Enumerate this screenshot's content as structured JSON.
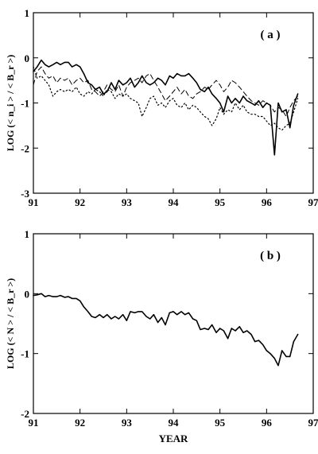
{
  "chart_data": [
    {
      "type": "line",
      "panel_label": "( a )",
      "ylabel": "LOG (< n_i > / < B_r >)",
      "xlabel": "",
      "xlim": [
        91,
        97
      ],
      "ylim": [
        -3,
        1
      ],
      "xticks": [
        91,
        92,
        93,
        94,
        95,
        96,
        97
      ],
      "yticks": [
        1,
        0,
        -1,
        -2,
        -3
      ],
      "x_tick_labels": [
        "91",
        "92",
        "93",
        "94",
        "95",
        "96",
        "97"
      ],
      "y_tick_labels": [
        "1",
        "0",
        "-1",
        "-2",
        "-3"
      ],
      "grid": false,
      "series": [
        {
          "style": "solid",
          "x": [
            91.0,
            91.08,
            91.17,
            91.25,
            91.33,
            91.42,
            91.5,
            91.58,
            91.67,
            91.75,
            91.83,
            91.92,
            92.0,
            92.08,
            92.17,
            92.25,
            92.33,
            92.42,
            92.5,
            92.58,
            92.67,
            92.75,
            92.83,
            92.92,
            93.0,
            93.08,
            93.17,
            93.25,
            93.33,
            93.42,
            93.5,
            93.58,
            93.67,
            93.75,
            93.83,
            93.92,
            94.0,
            94.08,
            94.17,
            94.25,
            94.33,
            94.42,
            94.5,
            94.58,
            94.67,
            94.75,
            94.83,
            94.92,
            95.0,
            95.08,
            95.17,
            95.25,
            95.33,
            95.42,
            95.5,
            95.58,
            95.67,
            95.75,
            95.83,
            95.92,
            96.0,
            96.08,
            96.17,
            96.25,
            96.33,
            96.42,
            96.5,
            96.58,
            96.67
          ],
          "y": [
            -0.3,
            -0.2,
            -0.05,
            -0.15,
            -0.2,
            -0.15,
            -0.1,
            -0.15,
            -0.1,
            -0.1,
            -0.2,
            -0.15,
            -0.2,
            -0.35,
            -0.55,
            -0.6,
            -0.7,
            -0.65,
            -0.8,
            -0.75,
            -0.55,
            -0.7,
            -0.5,
            -0.6,
            -0.55,
            -0.45,
            -0.65,
            -0.55,
            -0.4,
            -0.55,
            -0.6,
            -0.55,
            -0.45,
            -0.5,
            -0.6,
            -0.4,
            -0.45,
            -0.35,
            -0.4,
            -0.4,
            -0.35,
            -0.45,
            -0.55,
            -0.7,
            -0.75,
            -0.65,
            -0.8,
            -0.9,
            -1.0,
            -1.2,
            -0.85,
            -1.0,
            -0.9,
            -1.0,
            -0.85,
            -0.95,
            -1.0,
            -1.05,
            -0.95,
            -1.1,
            -1.0,
            -1.05,
            -2.15,
            -1.0,
            -1.2,
            -1.15,
            -1.55,
            -1.05,
            -0.8
          ]
        },
        {
          "style": "dashed",
          "x": [
            91.0,
            91.08,
            91.17,
            91.25,
            91.33,
            91.42,
            91.5,
            91.58,
            91.67,
            91.75,
            91.83,
            91.92,
            92.0,
            92.08,
            92.17,
            92.25,
            92.33,
            92.42,
            92.5,
            92.58,
            92.67,
            92.75,
            92.83,
            92.92,
            93.0,
            93.08,
            93.17,
            93.25,
            93.33,
            93.42,
            93.5,
            93.58,
            93.67,
            93.75,
            93.83,
            93.92,
            94.0,
            94.08,
            94.17,
            94.25,
            94.33,
            94.42,
            94.5,
            94.58,
            94.67,
            94.75,
            94.83,
            94.92,
            95.0,
            95.08,
            95.17,
            95.25,
            95.33,
            95.42,
            95.5,
            95.58,
            95.67,
            95.75,
            95.83,
            95.92,
            96.0,
            96.08,
            96.17,
            96.25,
            96.33,
            96.42,
            96.5,
            96.58,
            96.67
          ],
          "y": [
            -0.6,
            -0.3,
            -0.2,
            -0.35,
            -0.45,
            -0.4,
            -0.55,
            -0.45,
            -0.5,
            -0.45,
            -0.6,
            -0.5,
            -0.45,
            -0.55,
            -0.5,
            -0.7,
            -0.75,
            -0.85,
            -0.75,
            -0.6,
            -0.7,
            -0.75,
            -0.6,
            -0.85,
            -0.65,
            -0.55,
            -0.5,
            -0.45,
            -0.55,
            -0.4,
            -0.35,
            -0.5,
            -0.65,
            -0.8,
            -0.95,
            -0.85,
            -0.75,
            -0.65,
            -0.8,
            -0.7,
            -0.85,
            -0.9,
            -0.8,
            -0.75,
            -0.65,
            -0.7,
            -0.6,
            -0.5,
            -0.6,
            -0.75,
            -0.65,
            -0.5,
            -0.55,
            -0.65,
            -0.75,
            -0.85,
            -0.95,
            -1.0,
            -1.05,
            -0.95,
            -1.0,
            -1.05,
            -1.2,
            -1.1,
            -1.15,
            -1.3,
            -1.1,
            -0.95,
            -0.85
          ]
        },
        {
          "style": "dotted",
          "x": [
            91.0,
            91.08,
            91.17,
            91.25,
            91.33,
            91.42,
            91.5,
            91.58,
            91.67,
            91.75,
            91.83,
            91.92,
            92.0,
            92.08,
            92.17,
            92.25,
            92.33,
            92.42,
            92.5,
            92.58,
            92.67,
            92.75,
            92.83,
            92.92,
            93.0,
            93.08,
            93.17,
            93.25,
            93.33,
            93.42,
            93.5,
            93.58,
            93.67,
            93.75,
            93.83,
            93.92,
            94.0,
            94.08,
            94.17,
            94.25,
            94.33,
            94.42,
            94.5,
            94.58,
            94.67,
            94.75,
            94.83,
            94.92,
            95.0,
            95.08,
            95.17,
            95.25,
            95.33,
            95.42,
            95.5,
            95.58,
            95.67,
            95.75,
            95.83,
            95.92,
            96.0,
            96.08,
            96.17,
            96.25,
            96.33,
            96.42,
            96.5,
            96.58,
            96.67
          ],
          "y": [
            -0.2,
            -0.45,
            -0.4,
            -0.5,
            -0.6,
            -0.85,
            -0.75,
            -0.7,
            -0.75,
            -0.7,
            -0.75,
            -0.65,
            -0.8,
            -0.85,
            -0.75,
            -0.8,
            -0.7,
            -0.75,
            -0.85,
            -0.7,
            -0.75,
            -0.9,
            -0.8,
            -0.85,
            -0.8,
            -0.9,
            -0.95,
            -1.0,
            -1.3,
            -1.1,
            -0.9,
            -0.85,
            -1.05,
            -1.0,
            -1.1,
            -0.95,
            -0.9,
            -1.05,
            -1.1,
            -1.0,
            -1.15,
            -1.05,
            -1.1,
            -1.2,
            -1.3,
            -1.35,
            -1.5,
            -1.35,
            -1.1,
            -1.25,
            -1.15,
            -1.2,
            -1.0,
            -1.15,
            -1.05,
            -1.2,
            -1.25,
            -1.25,
            -1.3,
            -1.3,
            -1.4,
            -1.5,
            -1.45,
            -1.55,
            -1.6,
            -1.5,
            -1.45,
            -1.2,
            -0.9
          ]
        }
      ]
    },
    {
      "type": "line",
      "panel_label": "( b )",
      "ylabel": "LOG (< N > / < B_r >)",
      "xlabel": "YEAR",
      "xlim": [
        91,
        97
      ],
      "ylim": [
        -2,
        1
      ],
      "xticks": [
        91,
        92,
        93,
        94,
        95,
        96,
        97
      ],
      "yticks": [
        1,
        0,
        -1,
        -2
      ],
      "x_tick_labels": [
        "91",
        "92",
        "93",
        "94",
        "95",
        "96",
        "97"
      ],
      "y_tick_labels": [
        "1",
        "0",
        "-1",
        "-2"
      ],
      "grid": false,
      "series": [
        {
          "style": "solid",
          "x": [
            91.0,
            91.08,
            91.17,
            91.25,
            91.33,
            91.42,
            91.5,
            91.58,
            91.67,
            91.75,
            91.83,
            91.92,
            92.0,
            92.08,
            92.17,
            92.25,
            92.33,
            92.42,
            92.5,
            92.58,
            92.67,
            92.75,
            92.83,
            92.92,
            93.0,
            93.08,
            93.17,
            93.25,
            93.33,
            93.42,
            93.5,
            93.58,
            93.67,
            93.75,
            93.83,
            93.92,
            94.0,
            94.08,
            94.17,
            94.25,
            94.33,
            94.42,
            94.5,
            94.58,
            94.67,
            94.75,
            94.83,
            94.92,
            95.0,
            95.08,
            95.17,
            95.25,
            95.33,
            95.42,
            95.5,
            95.58,
            95.67,
            95.75,
            95.83,
            95.92,
            96.0,
            96.08,
            96.17,
            96.25,
            96.33,
            96.42,
            96.5,
            96.58,
            96.67
          ],
          "y": [
            -0.03,
            -0.02,
            0.0,
            -0.05,
            -0.03,
            -0.05,
            -0.05,
            -0.03,
            -0.06,
            -0.05,
            -0.08,
            -0.08,
            -0.12,
            -0.22,
            -0.3,
            -0.38,
            -0.4,
            -0.35,
            -0.4,
            -0.35,
            -0.42,
            -0.38,
            -0.42,
            -0.35,
            -0.45,
            -0.3,
            -0.32,
            -0.3,
            -0.3,
            -0.38,
            -0.42,
            -0.35,
            -0.48,
            -0.4,
            -0.52,
            -0.32,
            -0.3,
            -0.35,
            -0.3,
            -0.35,
            -0.32,
            -0.42,
            -0.45,
            -0.6,
            -0.58,
            -0.6,
            -0.52,
            -0.65,
            -0.58,
            -0.62,
            -0.75,
            -0.58,
            -0.62,
            -0.55,
            -0.65,
            -0.62,
            -0.68,
            -0.8,
            -0.78,
            -0.85,
            -0.95,
            -1.0,
            -1.08,
            -1.2,
            -0.95,
            -1.05,
            -1.05,
            -0.8,
            -0.68
          ]
        }
      ]
    }
  ]
}
